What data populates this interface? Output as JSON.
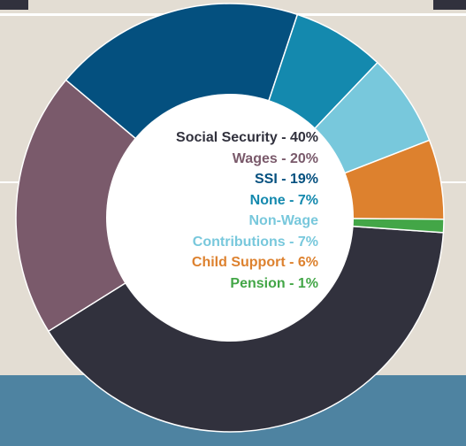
{
  "chart_data": {
    "type": "donut",
    "title": "",
    "series": [
      {
        "label": "Social Security",
        "value": 40,
        "color": "#31313d",
        "text_color": "#31313d"
      },
      {
        "label": "Wages",
        "value": 20,
        "color": "#7a5a6b",
        "text_color": "#7a5a6b"
      },
      {
        "label": "SSI",
        "value": 19,
        "color": "#04507f",
        "text_color": "#04507f"
      },
      {
        "label": "None",
        "value": 7,
        "color": "#1489ae",
        "text_color": "#1489ae"
      },
      {
        "label": "Non-Wage Contributions",
        "value": 7,
        "color": "#78c8dc",
        "text_color": "#78c8dc"
      },
      {
        "label": "Child Support",
        "value": 6,
        "color": "#dd812e",
        "text_color": "#dd812e"
      },
      {
        "label": "Pension",
        "value": 1,
        "color": "#43a647",
        "text_color": "#43a647"
      }
    ],
    "legend_placement": "center",
    "value_suffix": "%"
  },
  "legend": {
    "items": [
      {
        "text": "Social Security - 40%",
        "color": "#31313d"
      },
      {
        "text": "Wages - 20%",
        "color": "#7a5a6b"
      },
      {
        "text": "SSI - 19%",
        "color": "#04507f"
      },
      {
        "text": "None - 7%",
        "color": "#1489ae"
      },
      {
        "text": "Non-Wage",
        "color": "#78c8dc"
      },
      {
        "text": "Contributions - 7%",
        "color": "#78c8dc"
      },
      {
        "text": "Child Support - 6%",
        "color": "#dd812e"
      },
      {
        "text": "Pension - 1%",
        "color": "#43a647"
      }
    ]
  },
  "background": {
    "page_color": "#e3ddd3",
    "band_color": "#4e83a1",
    "tab_color": "#31313d",
    "divider_color": "#ffffff"
  }
}
